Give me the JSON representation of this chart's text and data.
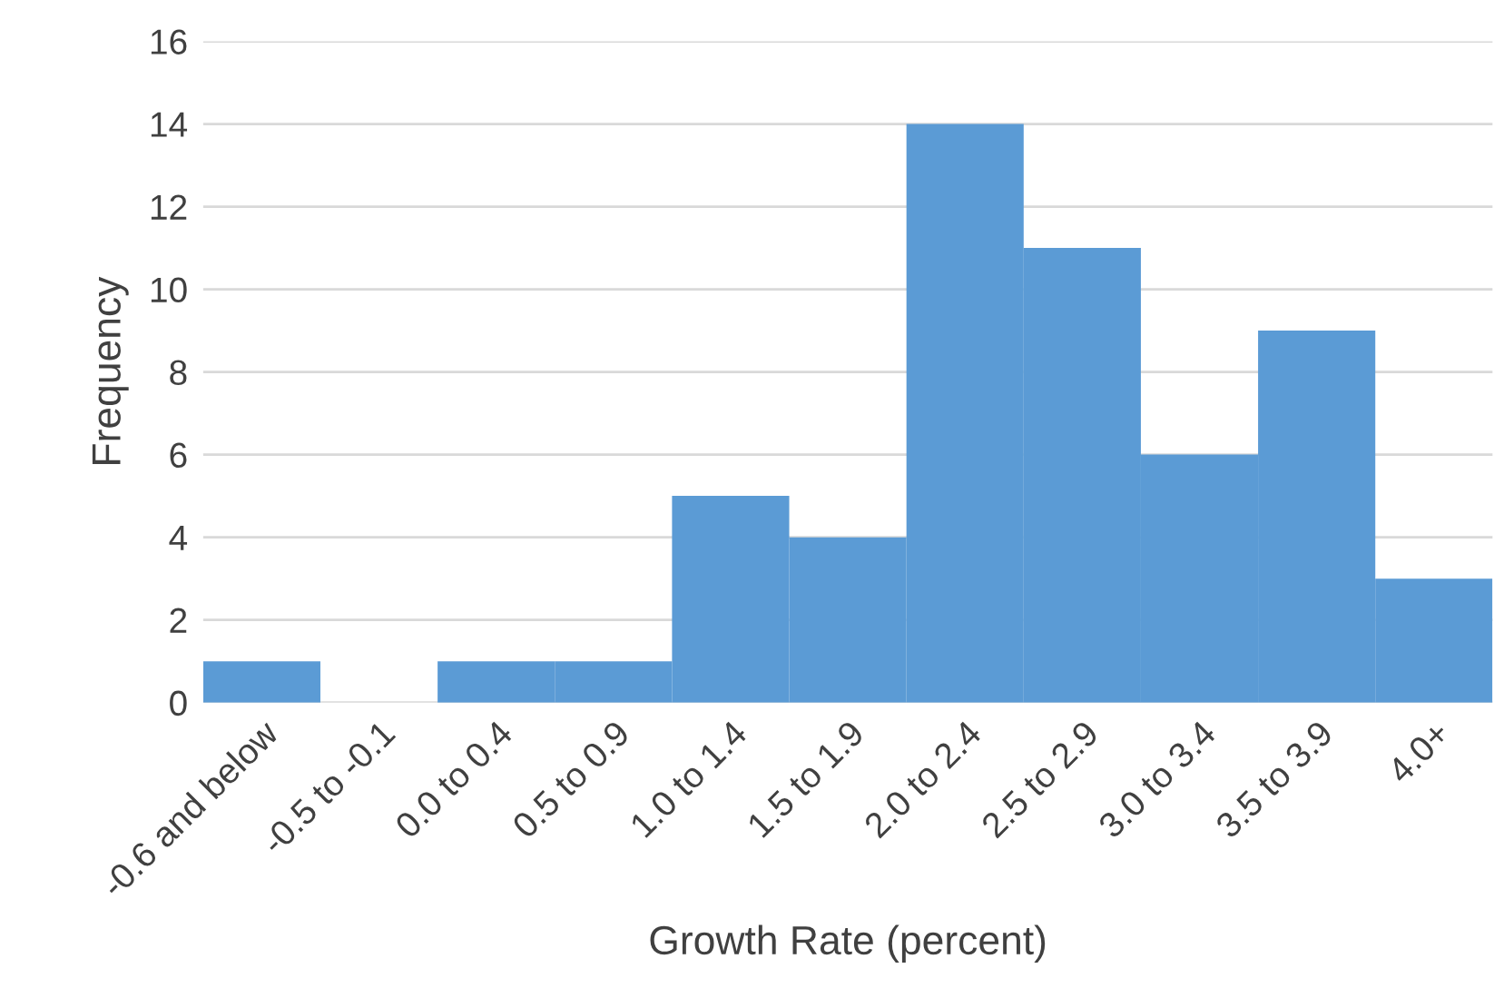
{
  "chart_data": {
    "type": "bar",
    "xlabel": "Growth Rate (percent)",
    "ylabel": "Frequency",
    "categories": [
      "-0.6 and below",
      "-0.5 to -0.1",
      "0.0 to 0.4",
      "0.5 to 0.9",
      "1.0 to 1.4",
      "1.5 to 1.9",
      "2.0 to 2.4",
      "2.5 to 2.9",
      "3.0 to 3.4",
      "3.5 to 3.9",
      "4.0+"
    ],
    "values": [
      1,
      0,
      1,
      1,
      5,
      4,
      14,
      11,
      6,
      9,
      3
    ],
    "color": "#5b9bd5",
    "ylim": [
      0,
      16
    ],
    "yticks": [
      0,
      2,
      4,
      6,
      8,
      10,
      12,
      14,
      16
    ],
    "grid": "y"
  }
}
